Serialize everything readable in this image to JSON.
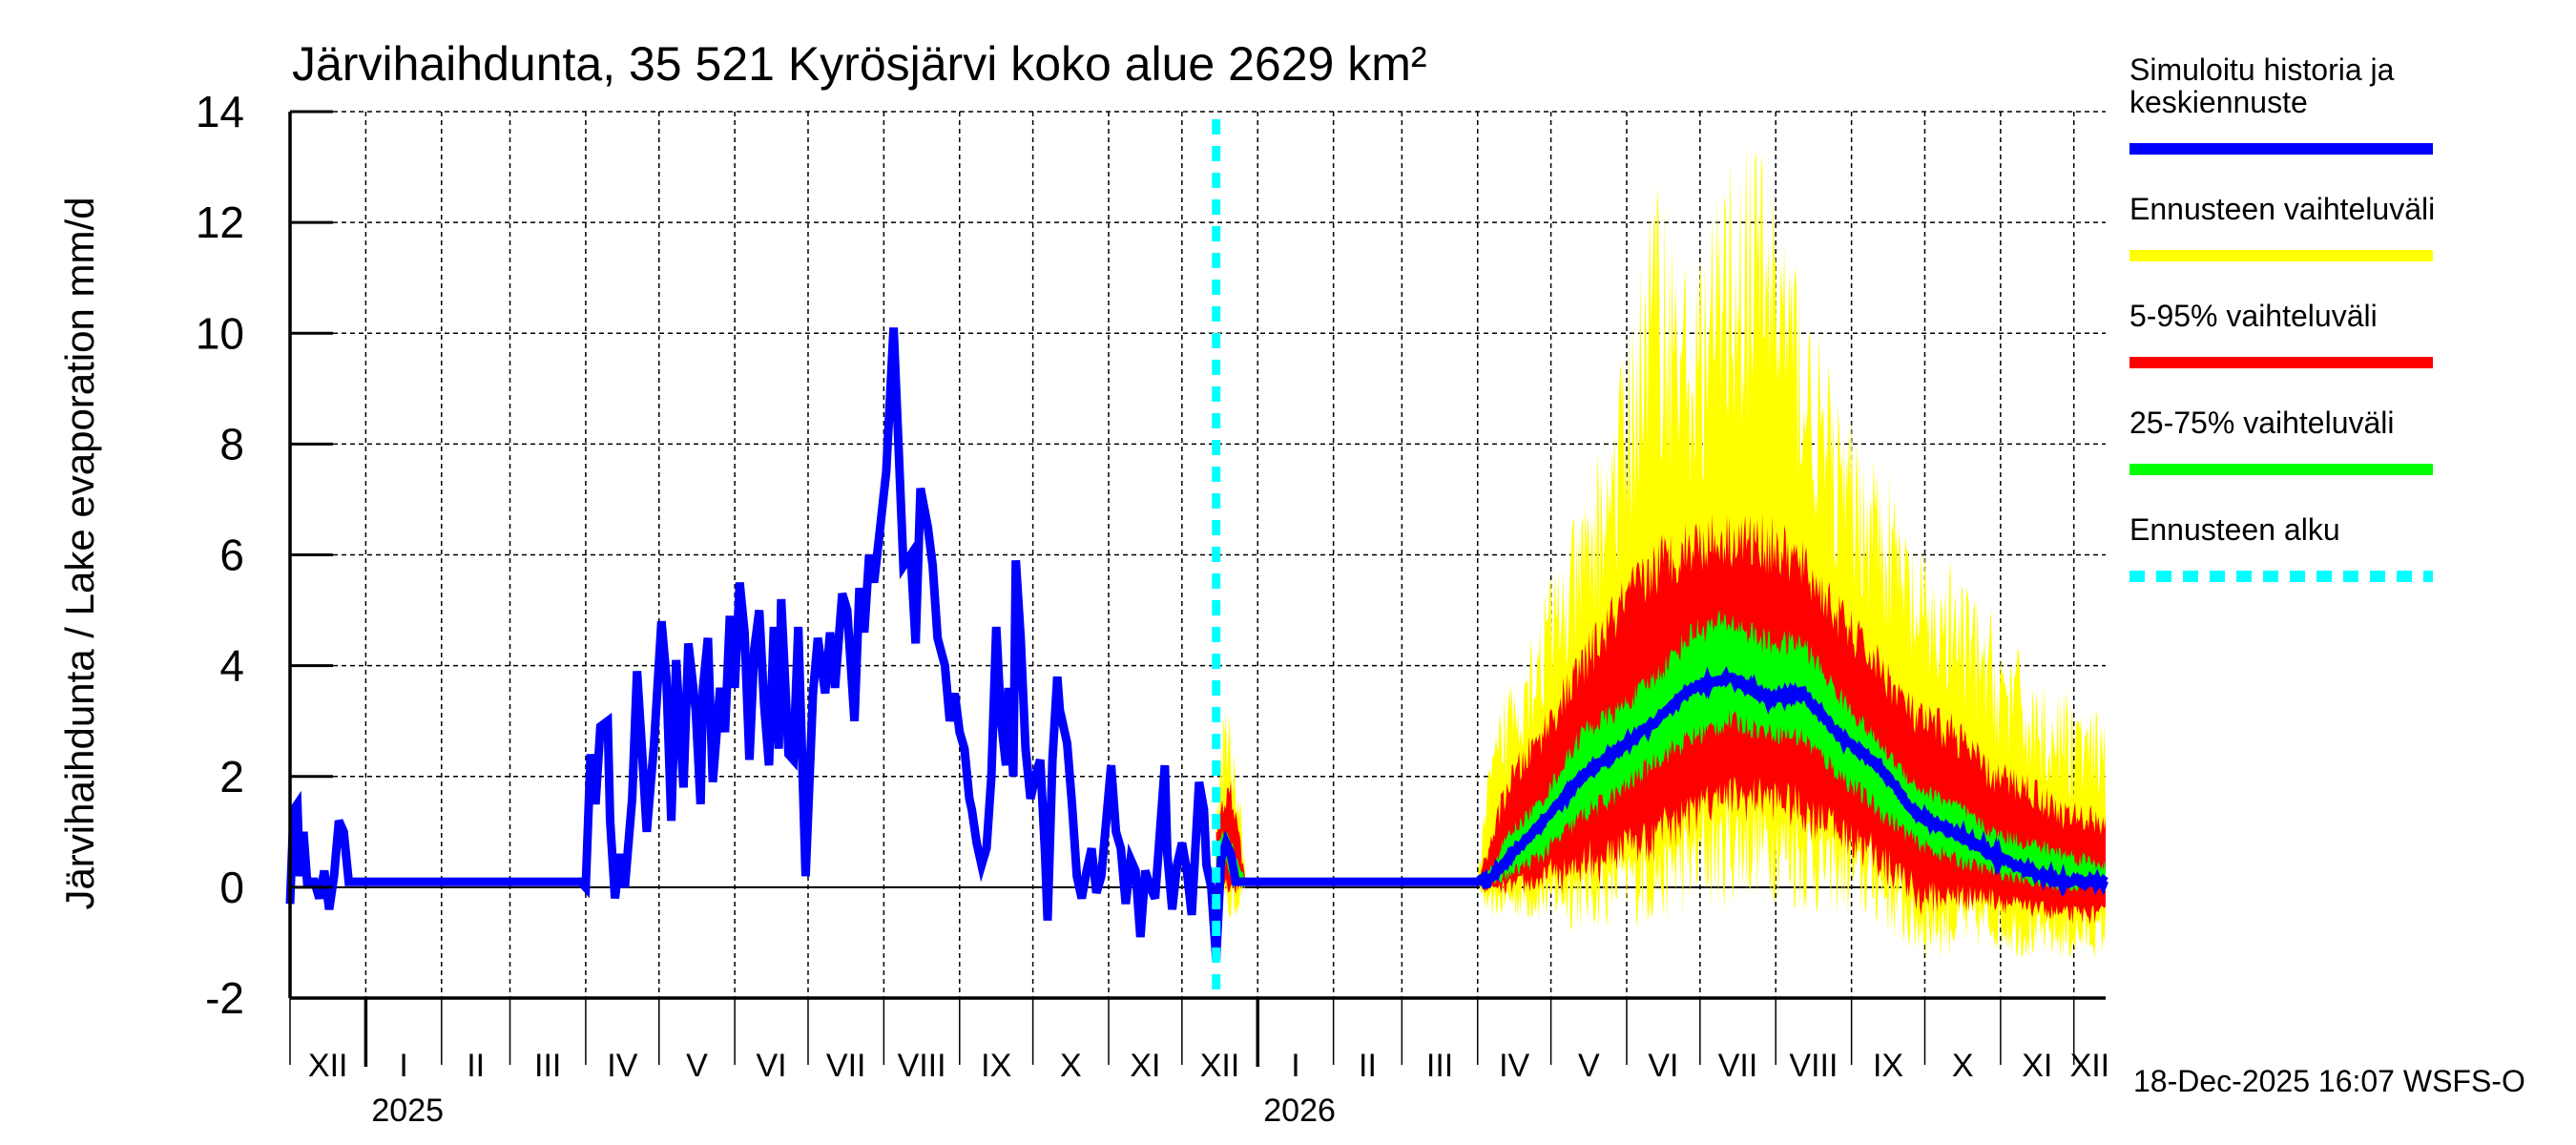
{
  "chart_data": {
    "type": "area",
    "title": "Järvihaihdunta, 35 521 Kyrösjärvi koko alue 2629 km²",
    "ylabel": "Järvihaihdunta / Lake evaporation   mm/d",
    "xlabel": "",
    "ylim": [
      -2,
      14
    ],
    "yticks": [
      -2,
      0,
      2,
      4,
      6,
      8,
      10,
      12,
      14
    ],
    "grid": true,
    "legend_position": "right",
    "x_start_date": "2024-12-01",
    "x_end_day": 743,
    "forecast_start_day": 379,
    "months": [
      {
        "label": "XII",
        "start_day": 0
      },
      {
        "label": "I",
        "start_day": 31
      },
      {
        "label": "II",
        "start_day": 62
      },
      {
        "label": "III",
        "start_day": 90
      },
      {
        "label": "IV",
        "start_day": 121
      },
      {
        "label": "V",
        "start_day": 151
      },
      {
        "label": "VI",
        "start_day": 182
      },
      {
        "label": "VII",
        "start_day": 212
      },
      {
        "label": "VIII",
        "start_day": 243
      },
      {
        "label": "IX",
        "start_day": 274
      },
      {
        "label": "X",
        "start_day": 304
      },
      {
        "label": "XI",
        "start_day": 335
      },
      {
        "label": "XII",
        "start_day": 365
      },
      {
        "label": "I",
        "start_day": 396
      },
      {
        "label": "II",
        "start_day": 427
      },
      {
        "label": "III",
        "start_day": 455
      },
      {
        "label": "IV",
        "start_day": 486
      },
      {
        "label": "V",
        "start_day": 516
      },
      {
        "label": "VI",
        "start_day": 547
      },
      {
        "label": "VII",
        "start_day": 577
      },
      {
        "label": "VIII",
        "start_day": 608
      },
      {
        "label": "IX",
        "start_day": 639
      },
      {
        "label": "X",
        "start_day": 669
      },
      {
        "label": "XI",
        "start_day": 700
      },
      {
        "label": "XII",
        "start_day": 730
      }
    ],
    "years": [
      {
        "label": "2025",
        "start_day": 31
      },
      {
        "label": "2026",
        "start_day": 396
      }
    ],
    "series": [
      {
        "name": "Simuloitu historia ja keskiennuste",
        "color": "#0000ff",
        "points": [
          [
            0,
            -0.3
          ],
          [
            1.5,
            1.4
          ],
          [
            3,
            1.5
          ],
          [
            4,
            0.2
          ],
          [
            5.5,
            1.0
          ],
          [
            7,
            0.1
          ],
          [
            10,
            0.1
          ],
          [
            12,
            -0.2
          ],
          [
            14,
            0.3
          ],
          [
            16,
            -0.4
          ],
          [
            18,
            0.2
          ],
          [
            20,
            1.2
          ],
          [
            22,
            1.0
          ],
          [
            24,
            0.1
          ],
          [
            30,
            0.1
          ],
          [
            60,
            0.1
          ],
          [
            90,
            0.1
          ],
          [
            119,
            0.1
          ],
          [
            121,
            0.0
          ],
          [
            123,
            2.4
          ],
          [
            125,
            1.5
          ],
          [
            127,
            2.9
          ],
          [
            130,
            3.0
          ],
          [
            131,
            1.2
          ],
          [
            133,
            -0.2
          ],
          [
            135,
            0.6
          ],
          [
            137,
            0.0
          ],
          [
            140,
            1.6
          ],
          [
            142,
            3.9
          ],
          [
            144,
            2.5
          ],
          [
            146,
            1.0
          ],
          [
            149,
            2.6
          ],
          [
            152,
            4.8
          ],
          [
            154,
            3.8
          ],
          [
            156,
            1.2
          ],
          [
            158,
            4.1
          ],
          [
            161,
            1.8
          ],
          [
            163,
            4.4
          ],
          [
            166,
            3.2
          ],
          [
            168,
            1.5
          ],
          [
            169,
            3.6
          ],
          [
            171,
            4.5
          ],
          [
            173,
            1.9
          ],
          [
            176,
            3.6
          ],
          [
            178,
            2.8
          ],
          [
            180,
            4.9
          ],
          [
            182,
            3.6
          ],
          [
            184,
            5.5
          ],
          [
            186,
            4.6
          ],
          [
            188,
            2.3
          ],
          [
            190,
            4.3
          ],
          [
            192,
            5.0
          ],
          [
            194,
            3.3
          ],
          [
            196,
            2.2
          ],
          [
            198,
            4.7
          ],
          [
            200,
            2.5
          ],
          [
            201,
            5.2
          ],
          [
            204,
            2.4
          ],
          [
            206,
            2.3
          ],
          [
            208,
            4.7
          ],
          [
            211,
            0.2
          ],
          [
            214,
            3.5
          ],
          [
            216,
            4.5
          ],
          [
            219,
            3.5
          ],
          [
            221,
            4.6
          ],
          [
            223,
            3.6
          ],
          [
            226,
            5.3
          ],
          [
            228,
            5.0
          ],
          [
            231,
            3.0
          ],
          [
            233,
            5.4
          ],
          [
            235,
            4.6
          ],
          [
            237,
            6.0
          ],
          [
            239,
            5.5
          ],
          [
            241,
            6.3
          ],
          [
            244,
            7.5
          ],
          [
            247,
            10.1
          ],
          [
            249,
            8.0
          ],
          [
            251,
            5.8
          ],
          [
            254,
            6.0
          ],
          [
            256,
            4.4
          ],
          [
            258,
            7.2
          ],
          [
            261,
            6.5
          ],
          [
            263,
            5.8
          ],
          [
            265,
            4.5
          ],
          [
            268,
            4.0
          ],
          [
            270,
            3.0
          ],
          [
            272,
            3.5
          ],
          [
            274,
            2.8
          ],
          [
            276,
            2.5
          ],
          [
            278,
            1.6
          ],
          [
            279,
            1.4
          ],
          [
            281,
            0.8
          ],
          [
            283,
            0.4
          ],
          [
            285,
            0.7
          ],
          [
            287,
            2.0
          ],
          [
            289,
            4.7
          ],
          [
            291,
            3.0
          ],
          [
            293,
            2.2
          ],
          [
            294,
            3.6
          ],
          [
            296,
            2.0
          ],
          [
            297,
            5.9
          ],
          [
            299,
            4.5
          ],
          [
            301,
            2.5
          ],
          [
            303,
            1.6
          ],
          [
            305,
            2.0
          ],
          [
            307,
            2.3
          ],
          [
            309,
            0.6
          ],
          [
            310,
            -0.6
          ],
          [
            312,
            2.3
          ],
          [
            314,
            3.8
          ],
          [
            315,
            3.2
          ],
          [
            318,
            2.6
          ],
          [
            320,
            1.5
          ],
          [
            322,
            0.2
          ],
          [
            324,
            -0.2
          ],
          [
            326,
            0.3
          ],
          [
            328,
            0.7
          ],
          [
            330,
            -0.1
          ],
          [
            332,
            0.2
          ],
          [
            334,
            1.2
          ],
          [
            336,
            2.2
          ],
          [
            338,
            1.0
          ],
          [
            340,
            0.7
          ],
          [
            342,
            -0.3
          ],
          [
            344,
            0.5
          ],
          [
            346,
            0.3
          ],
          [
            348,
            -0.9
          ],
          [
            350,
            0.3
          ],
          [
            352,
            0.0
          ],
          [
            354,
            -0.2
          ],
          [
            356,
            1.0
          ],
          [
            358,
            2.2
          ],
          [
            359,
            0.6
          ],
          [
            361,
            -0.4
          ],
          [
            363,
            0.4
          ],
          [
            365,
            0.8
          ],
          [
            367,
            0.3
          ],
          [
            369,
            -0.5
          ],
          [
            372,
            1.9
          ],
          [
            374,
            1.4
          ],
          [
            375,
            0.4
          ],
          [
            377,
            0.0
          ],
          [
            379,
            -1.3
          ],
          [
            381,
            0.5
          ],
          [
            383,
            0.8
          ],
          [
            385,
            0.6
          ],
          [
            387,
            0.1
          ],
          [
            391,
            0.1
          ],
          [
            420,
            0.1
          ],
          [
            450,
            0.1
          ],
          [
            486,
            0.1
          ]
        ]
      }
    ],
    "forecast_bands": {
      "columns": [
        "day",
        "min",
        "p5",
        "p25",
        "median",
        "p75",
        "p95",
        "max"
      ],
      "rows": [
        [
          379,
          0.0,
          0.1,
          0.3,
          0.5,
          0.6,
          0.9,
          1.0
        ],
        [
          382,
          -0.2,
          0.0,
          0.5,
          0.8,
          1.0,
          1.5,
          2.4
        ],
        [
          385,
          -0.3,
          -0.1,
          0.3,
          0.6,
          0.8,
          1.7,
          2.5
        ],
        [
          388,
          -0.2,
          0.0,
          0.1,
          0.2,
          0.4,
          1.0,
          1.6
        ],
        [
          391,
          0.1,
          0.1,
          0.1,
          0.1,
          0.1,
          0.1,
          0.1
        ],
        [
          486,
          0.1,
          0.1,
          0.1,
          0.1,
          0.1,
          0.1,
          0.1
        ],
        [
          490,
          -0.3,
          -0.1,
          0.05,
          0.1,
          0.2,
          0.6,
          1.5
        ],
        [
          498,
          -0.2,
          0.0,
          0.2,
          0.5,
          0.9,
          1.8,
          3.0
        ],
        [
          513,
          -0.1,
          0.1,
          0.6,
          1.2,
          1.6,
          2.8,
          4.3
        ],
        [
          529,
          0.0,
          0.3,
          1.3,
          2.0,
          2.8,
          4.0,
          5.6
        ],
        [
          544,
          0.2,
          0.6,
          1.7,
          2.5,
          3.2,
          5.0,
          7.5
        ],
        [
          559,
          0.3,
          0.9,
          2.3,
          3.0,
          3.8,
          5.8,
          10.5
        ],
        [
          574,
          0.6,
          1.3,
          2.7,
          3.6,
          4.6,
          6.2,
          9.0
        ],
        [
          589,
          0.8,
          1.6,
          3.0,
          3.8,
          4.8,
          6.3,
          10.8
        ],
        [
          605,
          0.8,
          1.6,
          2.8,
          3.4,
          4.4,
          6.2,
          11.0
        ],
        [
          619,
          0.6,
          1.4,
          2.7,
          3.5,
          4.4,
          5.8,
          9.0
        ],
        [
          635,
          0.4,
          0.9,
          2.0,
          2.7,
          3.4,
          4.8,
          7.0
        ],
        [
          650,
          0.1,
          0.5,
          1.4,
          2.2,
          2.6,
          4.0,
          6.5
        ],
        [
          666,
          -0.6,
          -0.2,
          0.8,
          1.3,
          1.8,
          3.0,
          4.8
        ],
        [
          681,
          -0.6,
          -0.2,
          0.5,
          1.0,
          1.5,
          2.8,
          4.5
        ],
        [
          696,
          -0.6,
          -0.2,
          0.3,
          0.6,
          1.0,
          2.0,
          3.8
        ],
        [
          711,
          -0.8,
          -0.4,
          0.1,
          0.3,
          0.8,
          1.8,
          3.0
        ],
        [
          726,
          -0.9,
          -0.5,
          0.0,
          0.1,
          0.6,
          1.3,
          2.6
        ],
        [
          743,
          -0.8,
          -0.5,
          0.0,
          0.1,
          0.4,
          1.2,
          2.2
        ]
      ]
    },
    "legend": [
      {
        "label_lines": [
          "Simuloitu historia ja",
          "keskiennuste"
        ],
        "color": "#0000ff",
        "style": "solid"
      },
      {
        "label_lines": [
          "Ennusteen vaihteluväli"
        ],
        "color": "#ffff00",
        "style": "solid"
      },
      {
        "label_lines": [
          "5-95% vaihteluväli"
        ],
        "color": "#ff0000",
        "style": "solid"
      },
      {
        "label_lines": [
          "25-75% vaihteluväli"
        ],
        "color": "#00ff00",
        "style": "solid"
      },
      {
        "label_lines": [
          "Ennusteen alku"
        ],
        "color": "#00ffff",
        "style": "dashed"
      }
    ]
  },
  "footer": "18-Dec-2025 16:07 WSFS-O"
}
